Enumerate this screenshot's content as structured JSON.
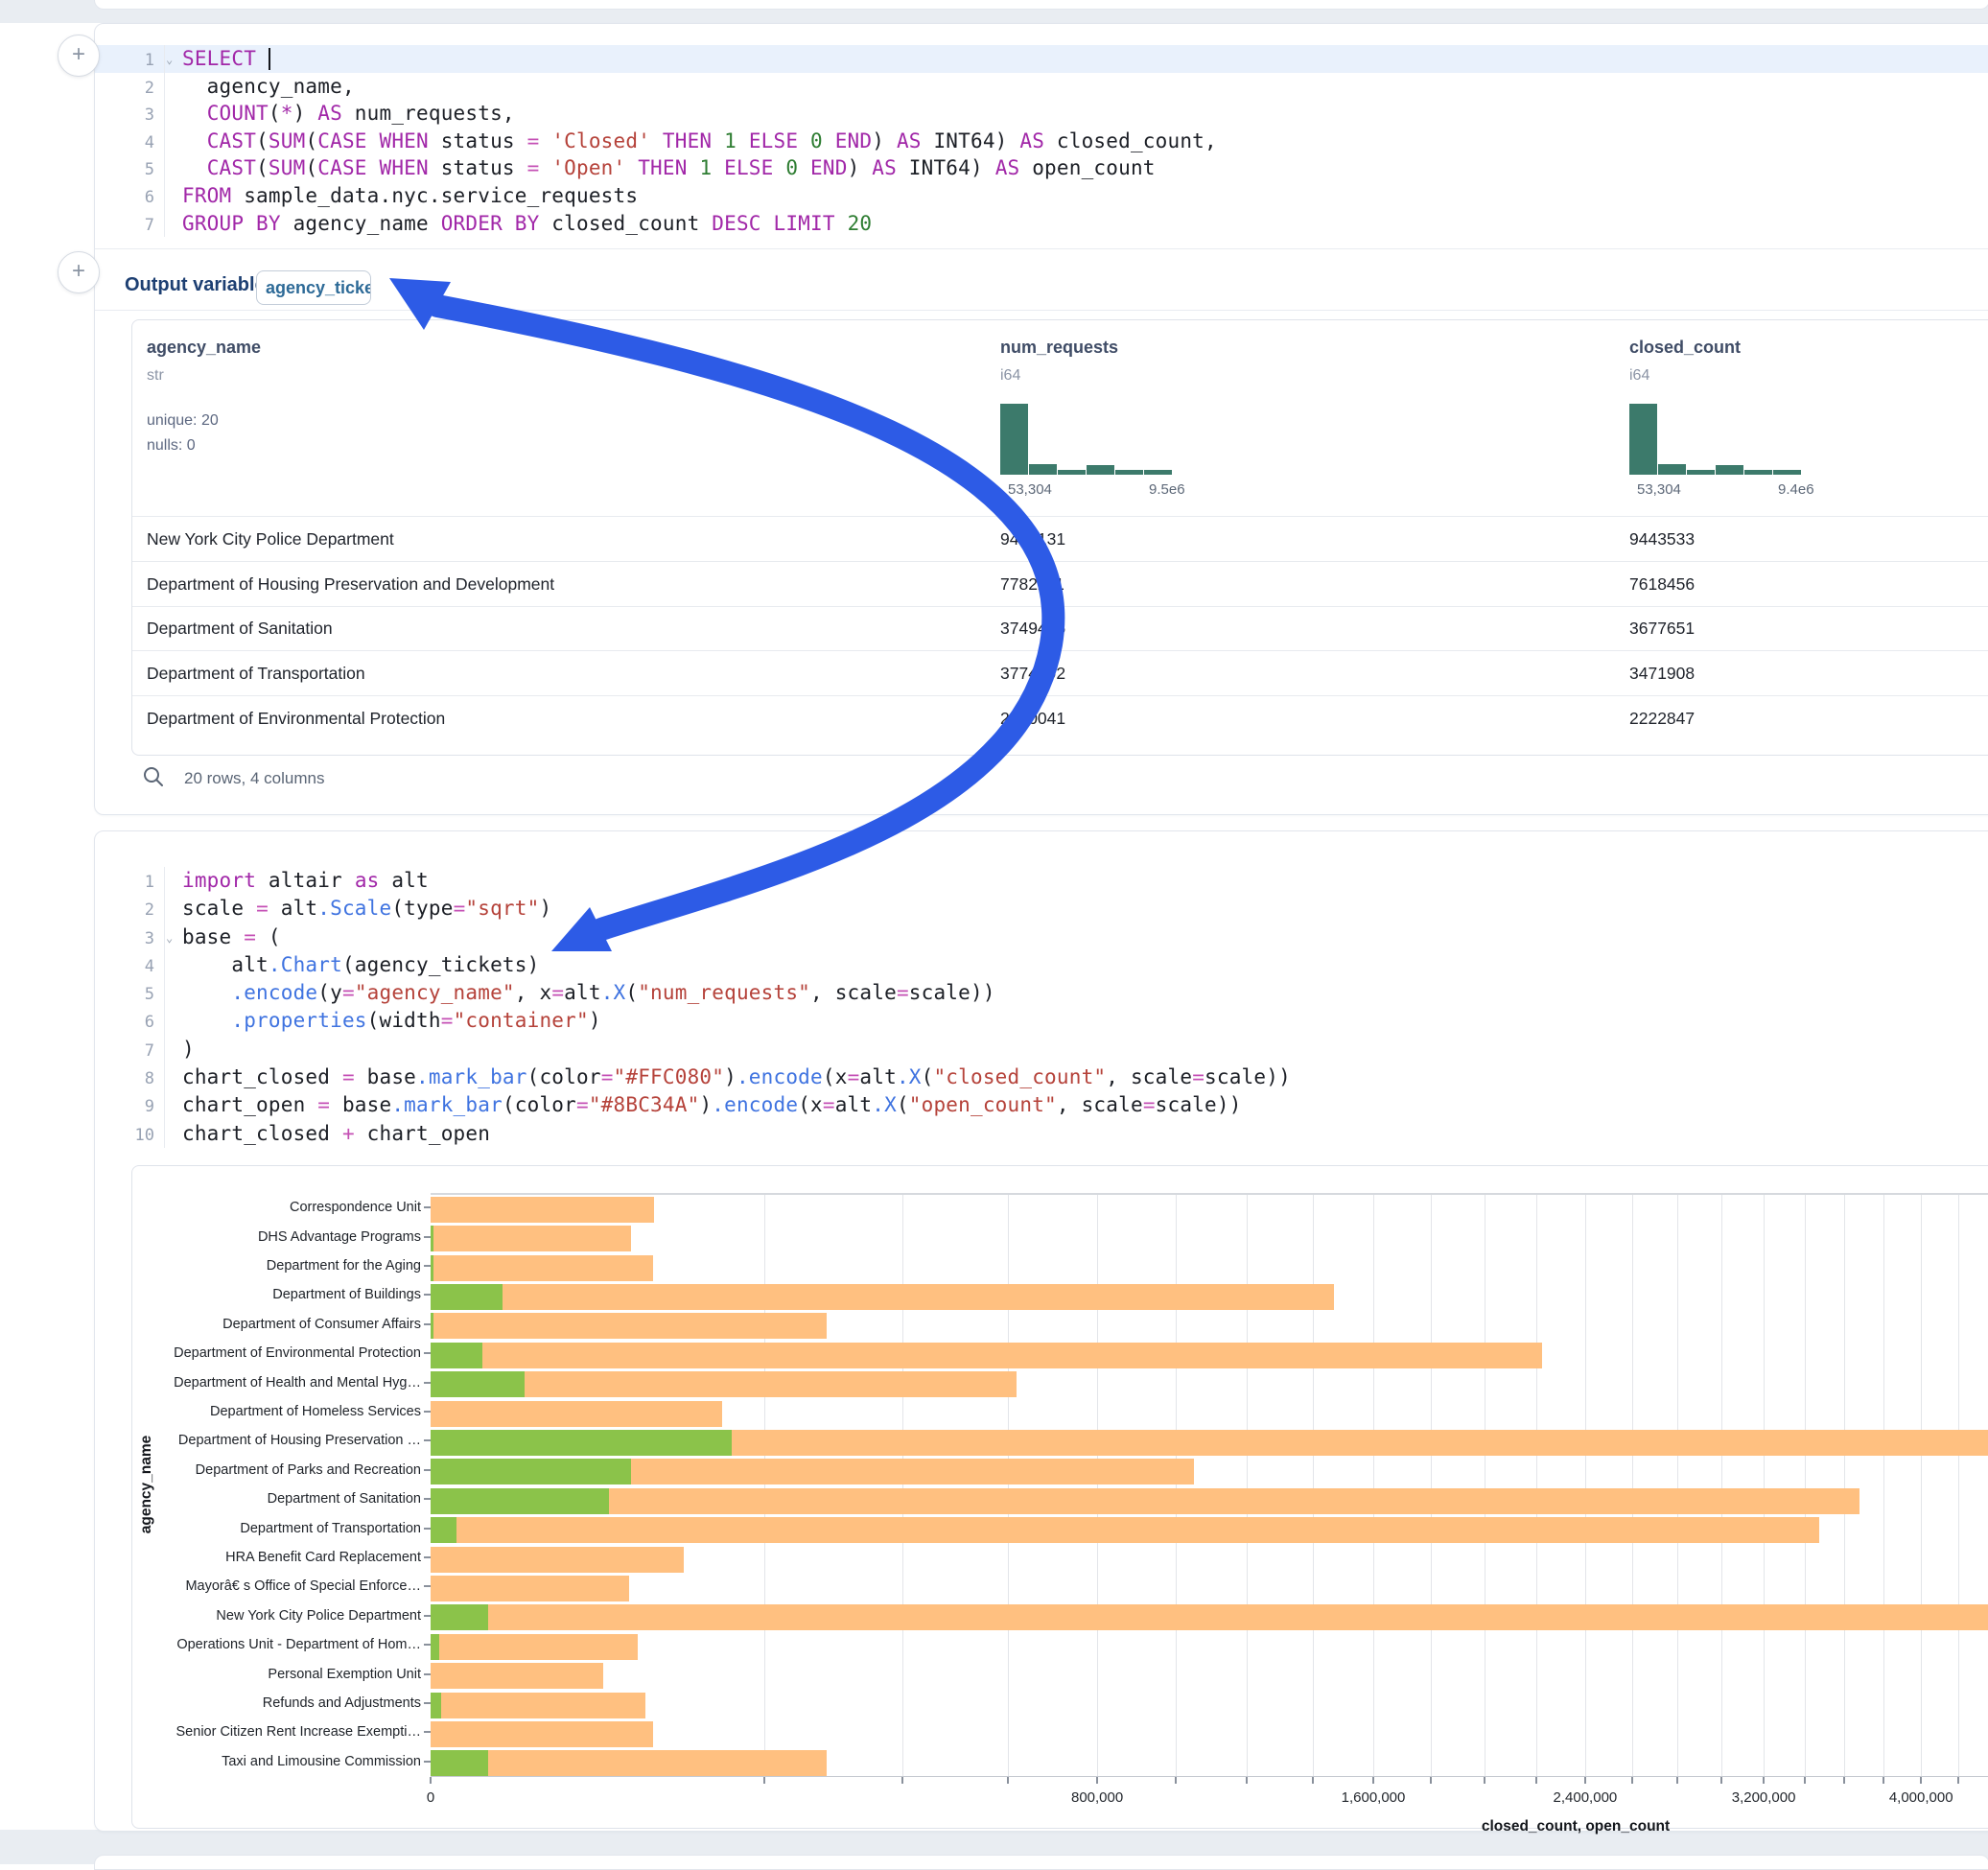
{
  "colors": {
    "keyword": "#a127a8",
    "function": "#3f73e0",
    "string": "#b5423a",
    "number": "#2e7d32",
    "operator": "#c44fb4",
    "plain_code": "#1c1f26",
    "histogram_bar": "#3c7a6b",
    "arrow_annotation": "#2d5be6",
    "closed_bar": "#FFC080",
    "open_bar": "#8BC34A"
  },
  "sql_cell": {
    "add_button": "+",
    "lines": [
      {
        "n": "1",
        "fold": true,
        "active": true,
        "cursor": true,
        "segs": [
          [
            "kw",
            "SELECT"
          ],
          [
            "plain",
            " "
          ]
        ]
      },
      {
        "n": "2",
        "segs": [
          [
            "plain",
            "  agency_name,"
          ]
        ]
      },
      {
        "n": "3",
        "segs": [
          [
            "plain",
            "  "
          ],
          [
            "kw",
            "COUNT"
          ],
          [
            "plain",
            "("
          ],
          [
            "kw",
            "*"
          ],
          [
            "plain",
            ") "
          ],
          [
            "kw",
            "AS"
          ],
          [
            "plain",
            " num_requests,"
          ]
        ]
      },
      {
        "n": "4",
        "segs": [
          [
            "plain",
            "  "
          ],
          [
            "kw",
            "CAST"
          ],
          [
            "plain",
            "("
          ],
          [
            "kw",
            "SUM"
          ],
          [
            "plain",
            "("
          ],
          [
            "kw",
            "CASE"
          ],
          [
            "plain",
            " "
          ],
          [
            "kw",
            "WHEN"
          ],
          [
            "plain",
            " status "
          ],
          [
            "op",
            "="
          ],
          [
            "plain",
            " "
          ],
          [
            "str",
            "'Closed'"
          ],
          [
            "plain",
            " "
          ],
          [
            "kw",
            "THEN"
          ],
          [
            "plain",
            " "
          ],
          [
            "num",
            "1"
          ],
          [
            "plain",
            " "
          ],
          [
            "kw",
            "ELSE"
          ],
          [
            "plain",
            " "
          ],
          [
            "num",
            "0"
          ],
          [
            "plain",
            " "
          ],
          [
            "kw",
            "END"
          ],
          [
            "plain",
            ") "
          ],
          [
            "kw",
            "AS"
          ],
          [
            "plain",
            " INT64) "
          ],
          [
            "kw",
            "AS"
          ],
          [
            "plain",
            " closed_count,"
          ]
        ]
      },
      {
        "n": "5",
        "segs": [
          [
            "plain",
            "  "
          ],
          [
            "kw",
            "CAST"
          ],
          [
            "plain",
            "("
          ],
          [
            "kw",
            "SUM"
          ],
          [
            "plain",
            "("
          ],
          [
            "kw",
            "CASE"
          ],
          [
            "plain",
            " "
          ],
          [
            "kw",
            "WHEN"
          ],
          [
            "plain",
            " status "
          ],
          [
            "op",
            "="
          ],
          [
            "plain",
            " "
          ],
          [
            "str",
            "'Open'"
          ],
          [
            "plain",
            " "
          ],
          [
            "kw",
            "THEN"
          ],
          [
            "plain",
            " "
          ],
          [
            "num",
            "1"
          ],
          [
            "plain",
            " "
          ],
          [
            "kw",
            "ELSE"
          ],
          [
            "plain",
            " "
          ],
          [
            "num",
            "0"
          ],
          [
            "plain",
            " "
          ],
          [
            "kw",
            "END"
          ],
          [
            "plain",
            ") "
          ],
          [
            "kw",
            "AS"
          ],
          [
            "plain",
            " INT64) "
          ],
          [
            "kw",
            "AS"
          ],
          [
            "plain",
            " open_count"
          ]
        ]
      },
      {
        "n": "6",
        "segs": [
          [
            "kw",
            "FROM"
          ],
          [
            "plain",
            " sample_data.nyc.service_requests"
          ]
        ]
      },
      {
        "n": "7",
        "segs": [
          [
            "kw",
            "GROUP BY"
          ],
          [
            "plain",
            " agency_name "
          ],
          [
            "kw",
            "ORDER BY"
          ],
          [
            "plain",
            " closed_count "
          ],
          [
            "kw",
            "DESC"
          ],
          [
            "plain",
            " "
          ],
          [
            "kw",
            "LIMIT"
          ],
          [
            "plain",
            " "
          ],
          [
            "num",
            "20"
          ]
        ]
      }
    ],
    "output_variable": {
      "label": "Output variable:",
      "value": "agency_tickets"
    }
  },
  "table": {
    "columns": [
      {
        "name": "agency_name",
        "dtype": "str",
        "stats": [
          "unique: 20",
          "nulls: 0"
        ]
      },
      {
        "name": "num_requests",
        "dtype": "i64",
        "hist": {
          "bins": [
            1,
            0.15,
            0.068,
            0.135,
            0.068,
            0.068
          ],
          "min_label": "53,304",
          "max_label": "9.5e6"
        }
      },
      {
        "name": "closed_count",
        "dtype": "i64",
        "hist": {
          "bins": [
            1,
            0.15,
            0.068,
            0.135,
            0.068,
            0.068
          ],
          "min_label": "53,304",
          "max_label": "9.4e6"
        }
      }
    ],
    "rows": [
      [
        "New York City Police Department",
        "9453131",
        "9443533"
      ],
      [
        "Department of Housing Preservation and Development",
        "7782211",
        "7618456"
      ],
      [
        "Department of Sanitation",
        "3749485",
        "3677651"
      ],
      [
        "Department of Transportation",
        "3774892",
        "3471908"
      ],
      [
        "Department of Environmental Protection",
        "2240041",
        "2222847"
      ]
    ],
    "footer": "20 rows, 4 columns"
  },
  "python_cell": {
    "lines": [
      {
        "n": "1",
        "segs": [
          [
            "kw",
            "import"
          ],
          [
            "plain",
            " altair "
          ],
          [
            "kw",
            "as"
          ],
          [
            "plain",
            " alt"
          ]
        ]
      },
      {
        "n": "2",
        "segs": [
          [
            "plain",
            "scale "
          ],
          [
            "op",
            "="
          ],
          [
            "plain",
            " alt"
          ],
          [
            "fn",
            ".Scale"
          ],
          [
            "plain",
            "(type"
          ],
          [
            "op",
            "="
          ],
          [
            "str",
            "\"sqrt\""
          ],
          [
            "plain",
            ")"
          ]
        ]
      },
      {
        "n": "3",
        "fold": true,
        "segs": [
          [
            "plain",
            "base "
          ],
          [
            "op",
            "="
          ],
          [
            "plain",
            " ("
          ]
        ]
      },
      {
        "n": "4",
        "segs": [
          [
            "plain",
            "    alt"
          ],
          [
            "fn",
            ".Chart"
          ],
          [
            "plain",
            "(agency_tickets)"
          ]
        ]
      },
      {
        "n": "5",
        "segs": [
          [
            "plain",
            "    "
          ],
          [
            "fn",
            ".encode"
          ],
          [
            "plain",
            "(y"
          ],
          [
            "op",
            "="
          ],
          [
            "str",
            "\"agency_name\""
          ],
          [
            "plain",
            ", x"
          ],
          [
            "op",
            "="
          ],
          [
            "plain",
            "alt"
          ],
          [
            "fn",
            ".X"
          ],
          [
            "plain",
            "("
          ],
          [
            "str",
            "\"num_requests\""
          ],
          [
            "plain",
            ", scale"
          ],
          [
            "op",
            "="
          ],
          [
            "plain",
            "scale))"
          ]
        ]
      },
      {
        "n": "6",
        "segs": [
          [
            "plain",
            "    "
          ],
          [
            "fn",
            ".properties"
          ],
          [
            "plain",
            "(width"
          ],
          [
            "op",
            "="
          ],
          [
            "str",
            "\"container\""
          ],
          [
            "plain",
            ")"
          ]
        ]
      },
      {
        "n": "7",
        "segs": [
          [
            "plain",
            ")"
          ]
        ]
      },
      {
        "n": "8",
        "segs": [
          [
            "plain",
            "chart_closed "
          ],
          [
            "op",
            "="
          ],
          [
            "plain",
            " base"
          ],
          [
            "fn",
            ".mark_bar"
          ],
          [
            "plain",
            "(color"
          ],
          [
            "op",
            "="
          ],
          [
            "str",
            "\"#FFC080\""
          ],
          [
            "plain",
            ")"
          ],
          [
            "fn",
            ".encode"
          ],
          [
            "plain",
            "(x"
          ],
          [
            "op",
            "="
          ],
          [
            "plain",
            "alt"
          ],
          [
            "fn",
            ".X"
          ],
          [
            "plain",
            "("
          ],
          [
            "str",
            "\"closed_count\""
          ],
          [
            "plain",
            ", scale"
          ],
          [
            "op",
            "="
          ],
          [
            "plain",
            "scale))"
          ]
        ]
      },
      {
        "n": "9",
        "segs": [
          [
            "plain",
            "chart_open "
          ],
          [
            "op",
            "="
          ],
          [
            "plain",
            " base"
          ],
          [
            "fn",
            ".mark_bar"
          ],
          [
            "plain",
            "(color"
          ],
          [
            "op",
            "="
          ],
          [
            "str",
            "\"#8BC34A\""
          ],
          [
            "plain",
            ")"
          ],
          [
            "fn",
            ".encode"
          ],
          [
            "plain",
            "(x"
          ],
          [
            "op",
            "="
          ],
          [
            "plain",
            "alt"
          ],
          [
            "fn",
            ".X"
          ],
          [
            "plain",
            "("
          ],
          [
            "str",
            "\"open_count\""
          ],
          [
            "plain",
            ", scale"
          ],
          [
            "op",
            "="
          ],
          [
            "plain",
            "scale))"
          ]
        ]
      },
      {
        "n": "10",
        "segs": [
          [
            "plain",
            "chart_closed "
          ],
          [
            "op",
            "+"
          ],
          [
            "plain",
            " chart_open"
          ]
        ]
      }
    ]
  },
  "chart_data": {
    "type": "bar",
    "orientation": "horizontal",
    "x_scale": "sqrt",
    "xlabel": "closed_count, open_count",
    "ylabel": "agency_name",
    "x_tick_step": 200000,
    "x_label_step": 800000,
    "x_domain": [
      0,
      9443533
    ],
    "grid": true,
    "legend_position": "none",
    "categories": [
      "Correspondence Unit",
      "DHS Advantage Programs",
      "Department for the Aging",
      "Department of Buildings",
      "Department of Consumer Affairs",
      "Department of Environmental Protection",
      "Department of Health and Mental Hyg…",
      "Department of Homeless Services",
      "Department of Housing Preservation …",
      "Department of Parks and Recreation",
      "Department of Sanitation",
      "Department of Transportation",
      "HRA Benefit Card Replacement",
      "Mayorâ€ s Office of Special Enforce…",
      "New York City Police Department",
      "Operations Unit - Department of Hom…",
      "Personal Exemption Unit",
      "Refunds and Adjustments",
      "Senior Citizen Rent Increase Exempti…",
      "Taxi and Limousine Commission"
    ],
    "series": [
      {
        "name": "closed_count",
        "color": "#FFC080",
        "values": [
          90000,
          72000,
          89000,
          1470000,
          282000,
          2222847,
          618000,
          153000,
          7618456,
          1050000,
          3677651,
          3471908,
          115000,
          71000,
          9443533,
          77000,
          53500,
          83000,
          89000,
          282000
        ]
      },
      {
        "name": "open_count",
        "color": "#8BC34A",
        "values": [
          0,
          18,
          15,
          9300,
          12,
          4800,
          16000,
          0,
          163000,
          72000,
          57000,
          1200,
          0,
          0,
          6000,
          120,
          0,
          200,
          0,
          6000
        ]
      }
    ]
  }
}
